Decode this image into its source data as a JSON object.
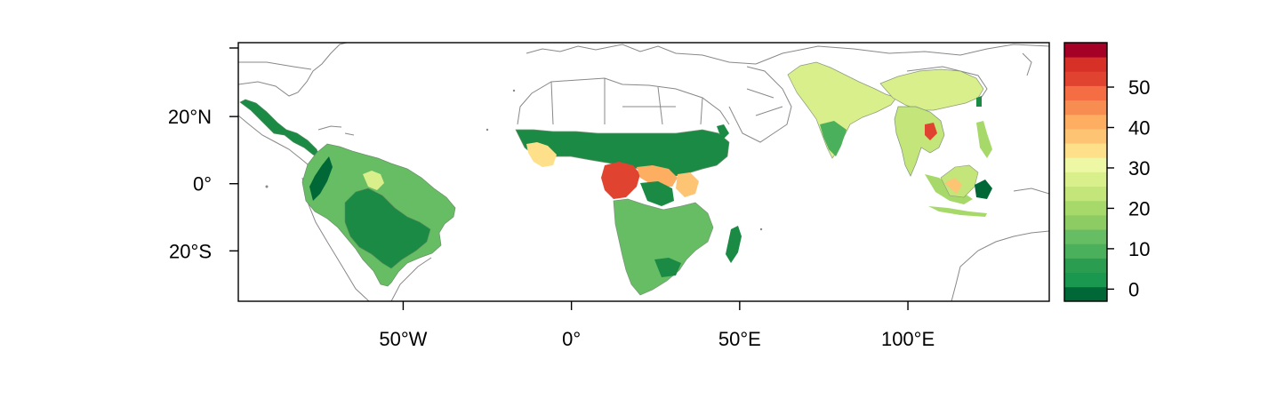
{
  "map": {
    "lat_ticks": [
      {
        "value": 20,
        "label": "20°N"
      },
      {
        "value": 0,
        "label": "0°"
      },
      {
        "value": -20,
        "label": "20°S"
      }
    ],
    "lon_ticks": [
      {
        "value": -50,
        "label": "50°W"
      },
      {
        "value": 0,
        "label": "0°"
      },
      {
        "value": 50,
        "label": "50°E"
      },
      {
        "value": 100,
        "label": "100°E"
      }
    ],
    "extent": {
      "lon": [
        -99,
        142
      ],
      "lat": [
        -35,
        42
      ]
    }
  },
  "colorbar": {
    "breaks": [
      -3,
      1,
      5,
      9,
      13,
      17,
      21,
      25,
      29,
      33,
      37,
      41,
      45,
      49,
      53,
      57,
      61
    ],
    "colors": [
      "#006837",
      "#1a9850",
      "#2a9d51",
      "#4bb05c",
      "#66bd63",
      "#8ccc62",
      "#a6d96a",
      "#c3e57a",
      "#d9ef8b",
      "#eef7a3",
      "#fee08b",
      "#fdc473",
      "#fdae61",
      "#f88d52",
      "#f46d43",
      "#e04430",
      "#d73027",
      "#a50026"
    ],
    "ticks": [
      {
        "value": 0,
        "label": "0"
      },
      {
        "value": 10,
        "label": "10"
      },
      {
        "value": 20,
        "label": "20"
      },
      {
        "value": 30,
        "label": "30"
      },
      {
        "value": 40,
        "label": "40"
      },
      {
        "value": 50,
        "label": "50"
      }
    ]
  },
  "colors": {
    "border": "#888888",
    "frame": "#000000",
    "dark_green": "#1a8a45",
    "mid_green": "#66bd63",
    "light_green": "#d9ef8b",
    "red": "#e04430"
  }
}
